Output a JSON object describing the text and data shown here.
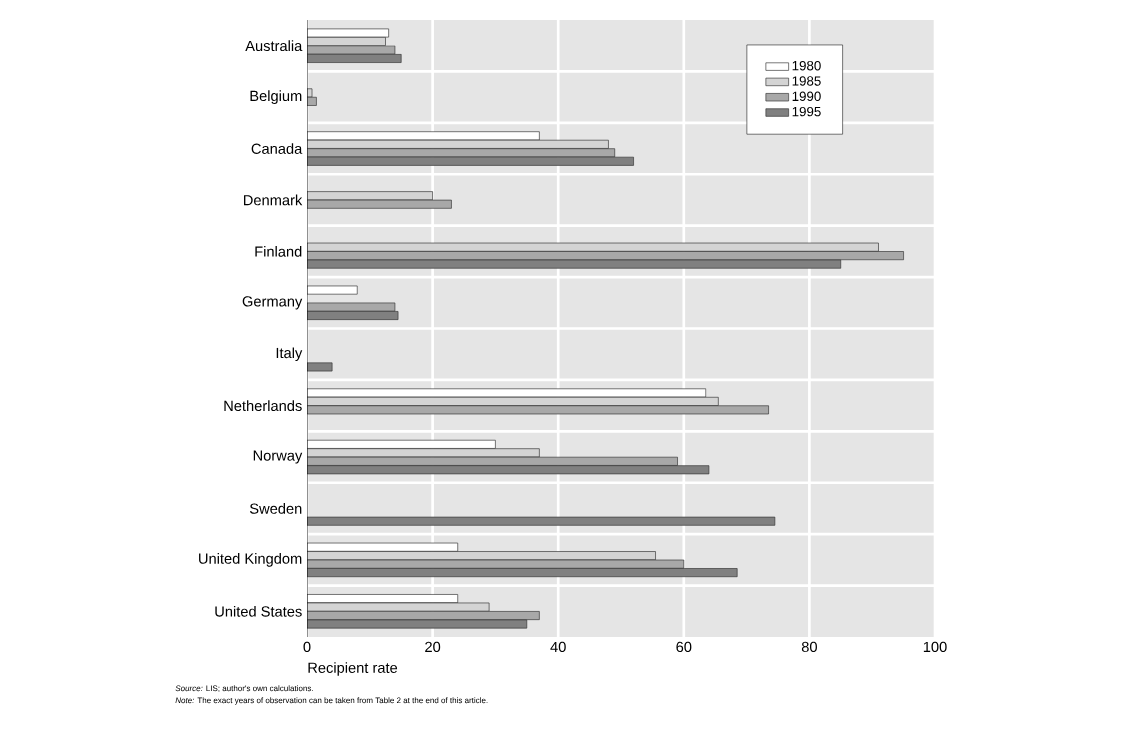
{
  "chart_data": {
    "type": "bar",
    "orientation": "horizontal",
    "categories": [
      "Australia",
      "Belgium",
      "Canada",
      "Denmark",
      "Finland",
      "Germany",
      "Italy",
      "Netherlands",
      "Norway",
      "Sweden",
      "United Kingdom",
      "United States"
    ],
    "series": [
      {
        "name": "1980",
        "color": "#ffffff",
        "values": [
          13,
          null,
          37,
          null,
          null,
          8,
          null,
          63.5,
          30,
          null,
          24,
          24
        ]
      },
      {
        "name": "1985",
        "color": "#d4d4d4",
        "values": [
          12.5,
          0.8,
          48,
          20,
          91,
          null,
          null,
          65.5,
          37,
          null,
          55.5,
          29
        ]
      },
      {
        "name": "1990",
        "color": "#a8a8a8",
        "values": [
          14,
          1.5,
          49,
          23,
          95,
          14,
          null,
          73.5,
          59,
          null,
          60,
          37
        ]
      },
      {
        "name": "1995",
        "color": "#808080",
        "values": [
          15,
          null,
          52,
          null,
          85,
          14.5,
          4,
          null,
          64,
          74.5,
          68.5,
          35
        ]
      }
    ],
    "xlim": [
      0,
      100
    ],
    "xticks": [
      0,
      20,
      40,
      60,
      80,
      100
    ],
    "xlabel": "Recipient rate",
    "grid": true,
    "legend": "top right",
    "annotations": [
      "*Source:* LIS; author's own calculations.",
      "*Note:* The exact years of observation can be taken from Table 2 at the end of this article."
    ]
  }
}
